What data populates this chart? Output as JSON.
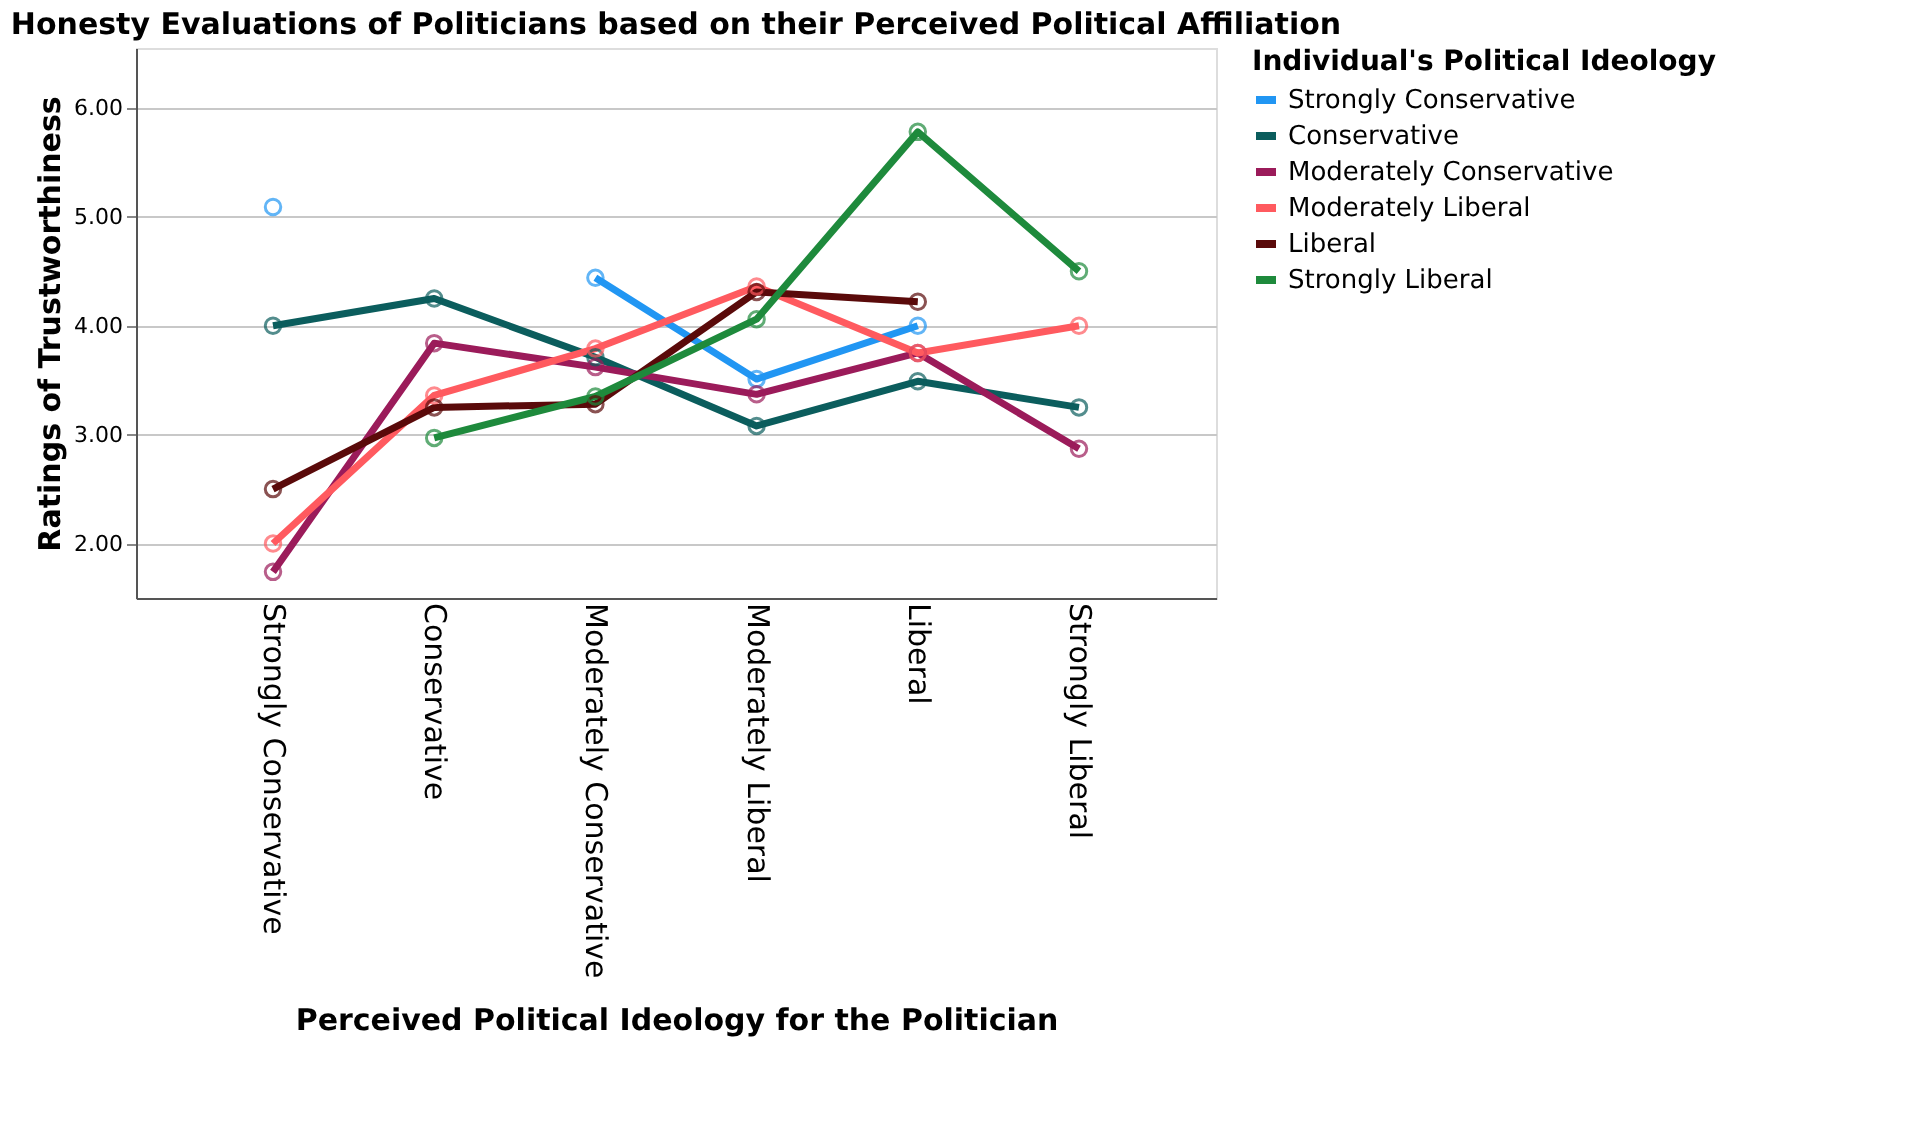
{
  "chart_data": {
    "type": "line",
    "title": "Honesty Evaluations of Politicians based on their Perceived Political Affiliation",
    "xlabel": "Perceived Political Ideology for the Politician",
    "ylabel": "Ratings of Trustworthiness",
    "legend_title": "Individual's Political Ideology",
    "categories": [
      "Strongly Conservative",
      "Conservative",
      "Moderately Conservative",
      "Moderately Liberal",
      "Liberal",
      "Strongly Liberal"
    ],
    "series": [
      {
        "name": "Strongly Conservative",
        "color": "#2196f3",
        "values": [
          5.09,
          null,
          4.44,
          3.51,
          4.0,
          null
        ]
      },
      {
        "name": "Conservative",
        "color": "#0b5d5d",
        "values": [
          4.0,
          4.25,
          3.71,
          3.08,
          3.49,
          3.25
        ]
      },
      {
        "name": "Moderately Conservative",
        "color": "#9b1b5a",
        "values": [
          1.74,
          3.84,
          3.62,
          3.37,
          3.75,
          2.87
        ]
      },
      {
        "name": "Moderately Liberal",
        "color": "#ff5a5f",
        "values": [
          2.0,
          3.36,
          3.79,
          4.36,
          3.75,
          4.0
        ]
      },
      {
        "name": "Liberal",
        "color": "#5a0a0a",
        "values": [
          2.5,
          3.25,
          3.28,
          4.31,
          4.22,
          null
        ]
      },
      {
        "name": "Strongly Liberal",
        "color": "#1e8a3c",
        "values": [
          null,
          2.97,
          3.35,
          4.06,
          5.78,
          4.5
        ]
      }
    ],
    "ylim": [
      1.5,
      6.55
    ],
    "yticks": [
      {
        "value": 2,
        "label": "2.00"
      },
      {
        "value": 3,
        "label": "3.00"
      },
      {
        "value": 4,
        "label": "4.00"
      },
      {
        "value": 5,
        "label": "5.00"
      },
      {
        "value": 6,
        "label": "6.00"
      }
    ],
    "grid": "y",
    "legend": "right",
    "marker": "circle",
    "line_style": "solid"
  }
}
